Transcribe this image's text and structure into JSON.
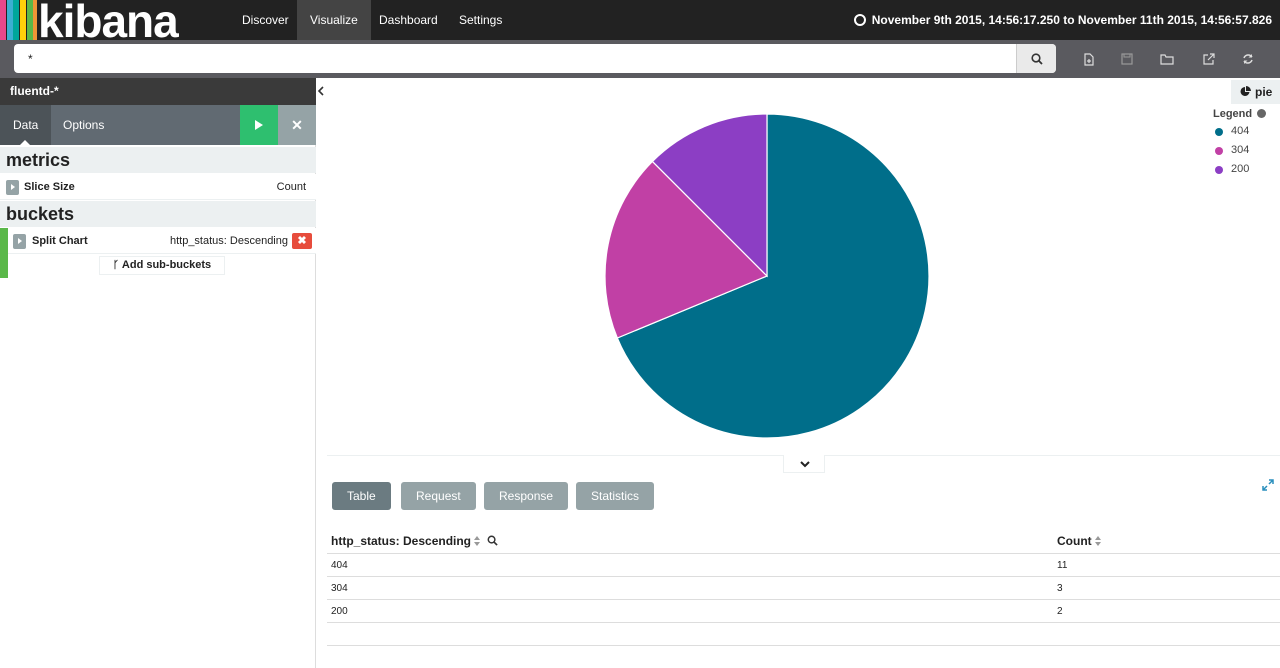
{
  "app": {
    "logo_text": "kibana",
    "logo_bar_colors": [
      "#e8488b",
      "#3caed2",
      "#00a69b",
      "#fed10a",
      "#5ab849",
      "#f09536"
    ]
  },
  "nav": {
    "items": [
      {
        "label": "Discover",
        "active": false
      },
      {
        "label": "Visualize",
        "active": true
      },
      {
        "label": "Dashboard",
        "active": false
      },
      {
        "label": "Settings",
        "active": false
      }
    ],
    "time_range": "November 9th 2015, 14:56:17.250 to November 11th 2015, 14:56:57.826",
    "time_icon": "clock-icon"
  },
  "search": {
    "query": "*",
    "search_icon": "search-icon"
  },
  "toolbar": {
    "icons": [
      "new-visualization-icon",
      "save-icon",
      "open-folder-icon",
      "share-icon",
      "refresh-icon"
    ]
  },
  "sidebar": {
    "index_pattern": "fluentd-*",
    "tabs": [
      {
        "label": "Data",
        "active": true
      },
      {
        "label": "Options",
        "active": false
      }
    ],
    "metrics_heading": "metrics",
    "metrics": [
      {
        "label": "Slice Size",
        "value": "Count"
      }
    ],
    "buckets_heading": "buckets",
    "buckets": [
      {
        "label": "Split Chart",
        "value": "http_status: Descending"
      }
    ],
    "add_sub_buckets": "Add sub-buckets"
  },
  "visualization": {
    "chart_type_label": "pie",
    "legend_title": "Legend",
    "legend_items": [
      {
        "label": "404",
        "color": "#006e8a"
      },
      {
        "label": "304",
        "color": "#c140a5"
      },
      {
        "label": "200",
        "color": "#8c3ec4"
      }
    ]
  },
  "chart_data": {
    "type": "pie",
    "categories": [
      "404",
      "304",
      "200"
    ],
    "values": [
      11,
      3,
      2
    ],
    "colors": [
      "#006e8a",
      "#c140a5",
      "#8c3ec4"
    ],
    "legend_position": "top-right"
  },
  "spy": {
    "tabs": [
      {
        "label": "Table",
        "active": true
      },
      {
        "label": "Request",
        "active": false
      },
      {
        "label": "Response",
        "active": false
      },
      {
        "label": "Statistics",
        "active": false
      }
    ]
  },
  "table": {
    "columns": [
      "http_status: Descending",
      "Count"
    ],
    "rows": [
      [
        "404",
        "11"
      ],
      [
        "304",
        "3"
      ],
      [
        "200",
        "2"
      ]
    ]
  }
}
